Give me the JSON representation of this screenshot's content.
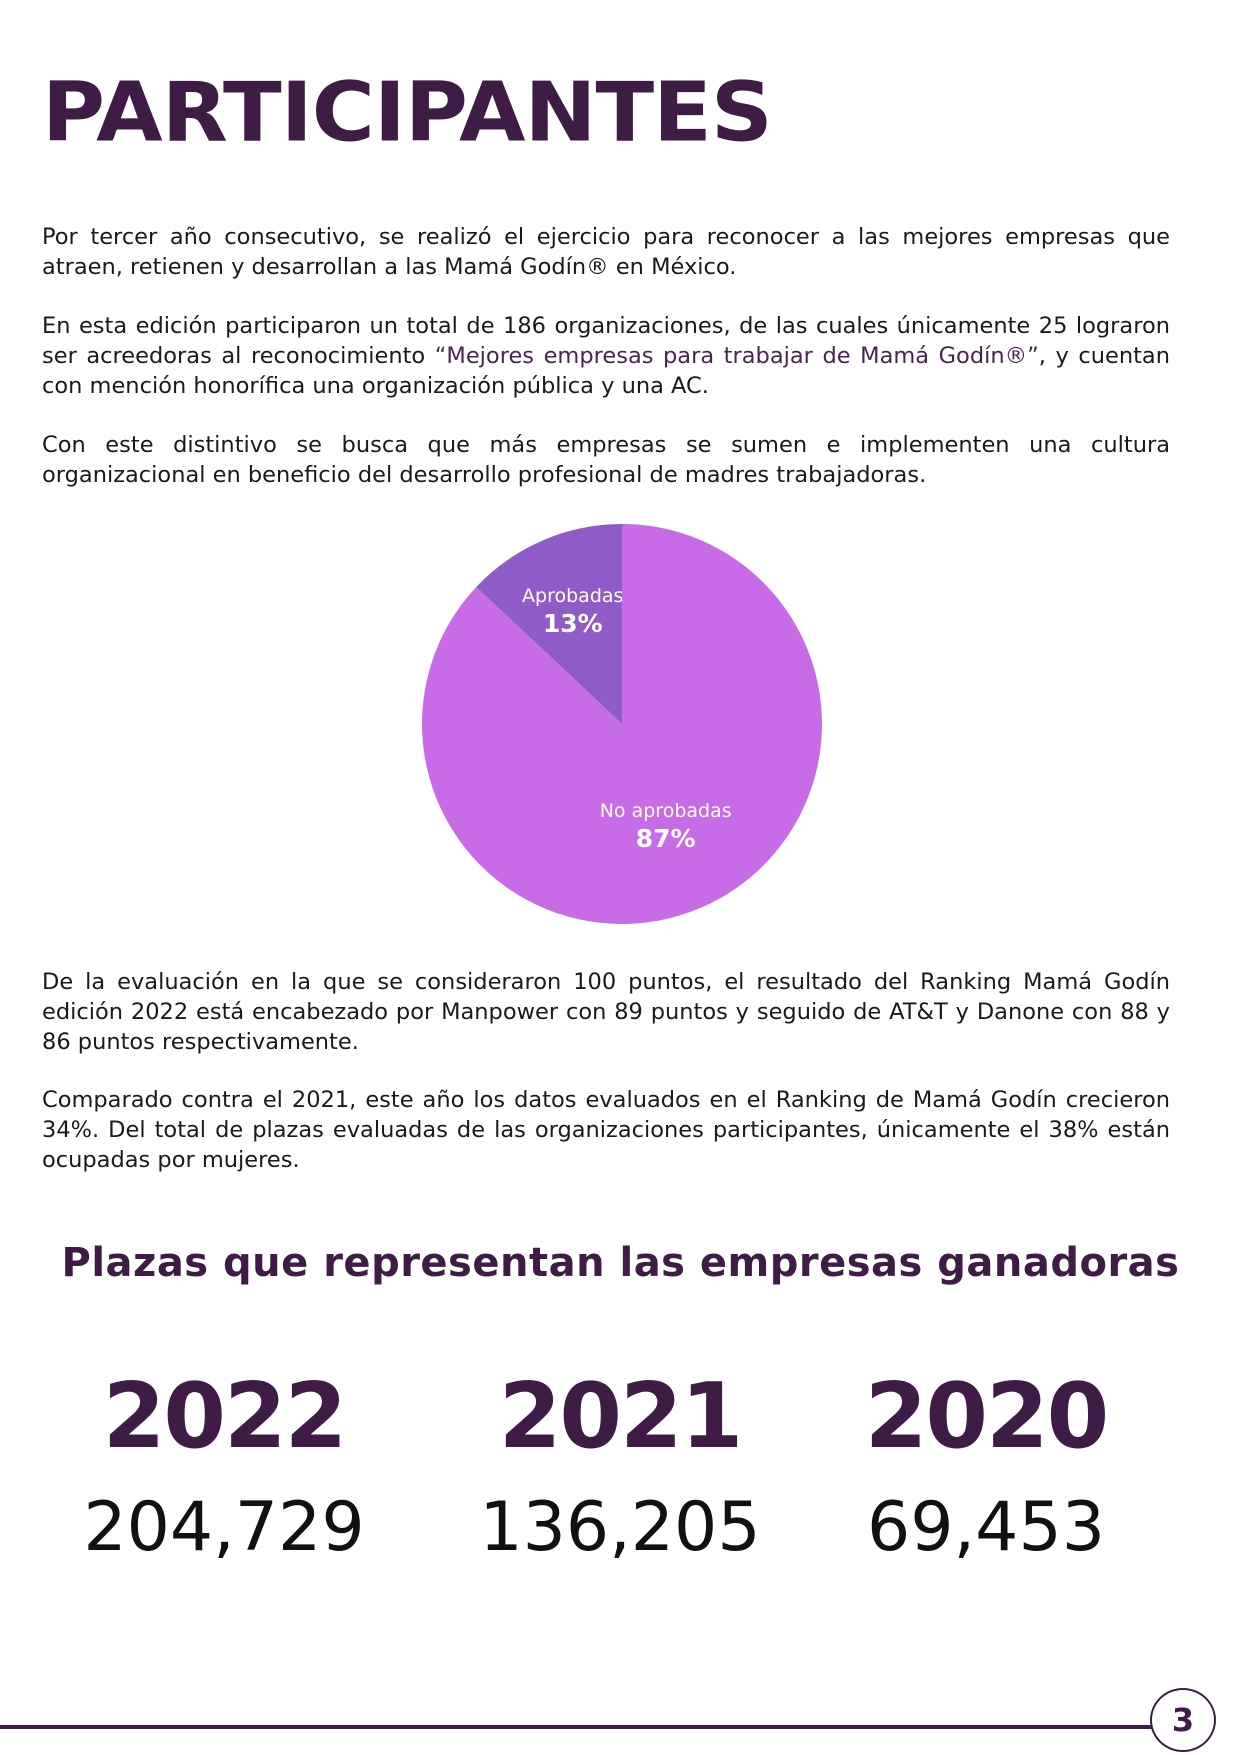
{
  "title": "PARTICIPANTES",
  "paragraphs": {
    "p1": "Por tercer año consecutivo, se realizó el ejercicio para reconocer a las mejores empresas que atraen, retienen y desarrollan a las Mamá Godín® en México.",
    "p2_a": "En esta edición participaron un total de 186 organizaciones, de las cuales únicamente 25 lograron ser acreedoras al reconocimiento ",
    "p2_highlight": "“Mejores empresas para trabajar de Mamá Godín®”",
    "p2_b": ", y cuentan con mención honorífica una organización pública y una AC.",
    "p3": "Con este distintivo se busca que más empresas se sumen e implementen una cultura organizacional en beneficio del desarrollo profesional de madres trabajadoras.",
    "p4": "De la evaluación en la que se consideraron 100 puntos, el resultado del Ranking Mamá Godín edición 2022 está encabezado por Manpower con 89 puntos y seguido de AT&T y Danone con 88 y 86 puntos respectivamente.",
    "p5": "Comparado contra el 2021, este año los datos evaluados en el Ranking de Mamá Godín crecieron 34%. Del total de plazas evaluadas de las organizaciones participantes, únicamente el 38% están ocupadas por mujeres."
  },
  "chart_data": {
    "type": "pie",
    "slices": [
      {
        "label": "Aprobadas",
        "value": 13,
        "value_label": "13%",
        "color": "#8e5cc6"
      },
      {
        "label": "No aprobadas",
        "value": 87,
        "value_label": "87%",
        "color": "#c86be6"
      }
    ]
  },
  "subtitle": "Plazas que representan las empresas ganadoras",
  "stats": [
    {
      "year": "2022",
      "value": "204,729"
    },
    {
      "year": "2021",
      "value": "136,205"
    },
    {
      "year": "2020",
      "value": "69,453"
    }
  ],
  "page_number": "3",
  "colors": {
    "brand": "#3f1c45",
    "highlight": "#4a2450"
  }
}
